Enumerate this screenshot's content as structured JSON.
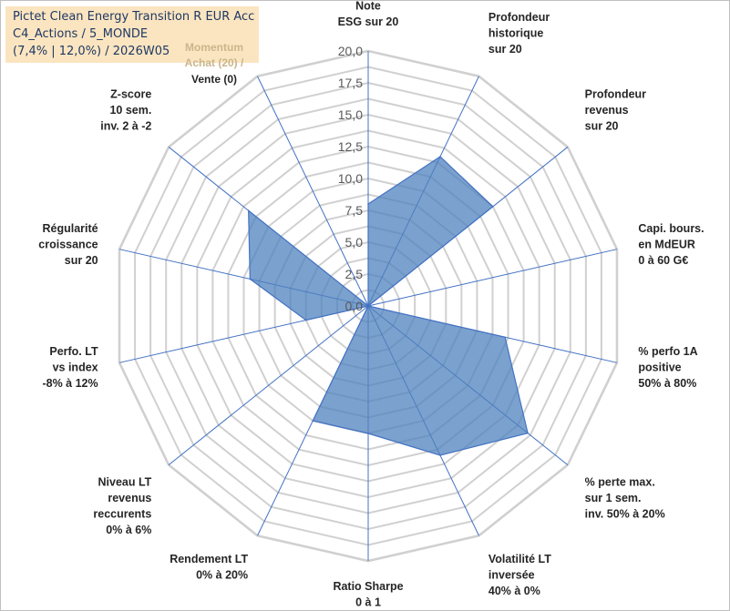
{
  "title": {
    "line1": "Pictet Clean Energy Transition R EUR Acc",
    "line2": "C4_Actions / 5_MONDE",
    "line3": "(7,4% | 12,0%) / 2026W05"
  },
  "momentum": {
    "line1": "Momentum",
    "line2": "Achat (20) /",
    "line3": "Vente (0)"
  },
  "chart_data": {
    "type": "radar",
    "r_range": [
      0,
      20
    ],
    "tick_labels": [
      "0,0",
      "2,5",
      "5,0",
      "7,5",
      "10,0",
      "12,5",
      "15,0",
      "17,5",
      "20,0"
    ],
    "axes": [
      [
        "Note",
        "ESG sur 20"
      ],
      [
        "Profondeur",
        "historique",
        "sur 20"
      ],
      [
        "Profondeur",
        "revenus",
        "sur 20"
      ],
      [
        "Capi. bours.",
        "en MdEUR",
        "0 à 60 G€"
      ],
      [
        "% perfo 1A",
        "positive",
        "50% à 80%"
      ],
      [
        "% perte max.",
        "sur 1 sem.",
        "inv. 50% à 20%"
      ],
      [
        "Volatilité LT",
        "inversée",
        "40% à 0%"
      ],
      [
        "Ratio Sharpe",
        "0 à 1"
      ],
      [
        "Rendement LT",
        "0% à 20%"
      ],
      [
        "Niveau LT",
        "revenus",
        "reccurents",
        "0% à 6%"
      ],
      [
        "Perfo. LT",
        "vs index",
        "-8% à 12%"
      ],
      [
        "Régularité",
        "croissance",
        "sur 20"
      ],
      [
        "Z-score",
        "10 sem.",
        "inv. 2 à -2"
      ],
      [
        "Momentum",
        "Achat (20) /",
        "Vente (0)"
      ]
    ],
    "series": [
      {
        "values": [
          8.0,
          13.0,
          12.5,
          0.0,
          11.0,
          16.0,
          13.0,
          10.0,
          10.0,
          0.0,
          5.0,
          9.5,
          12.0,
          0.0
        ]
      }
    ],
    "grid": true,
    "legend": "none",
    "colors": {
      "fill": "#4f81bd",
      "fill_opacity": 0.75,
      "stroke": "#4472c4",
      "grid": "#d0d0d0",
      "spoke": "#4472c4"
    }
  }
}
